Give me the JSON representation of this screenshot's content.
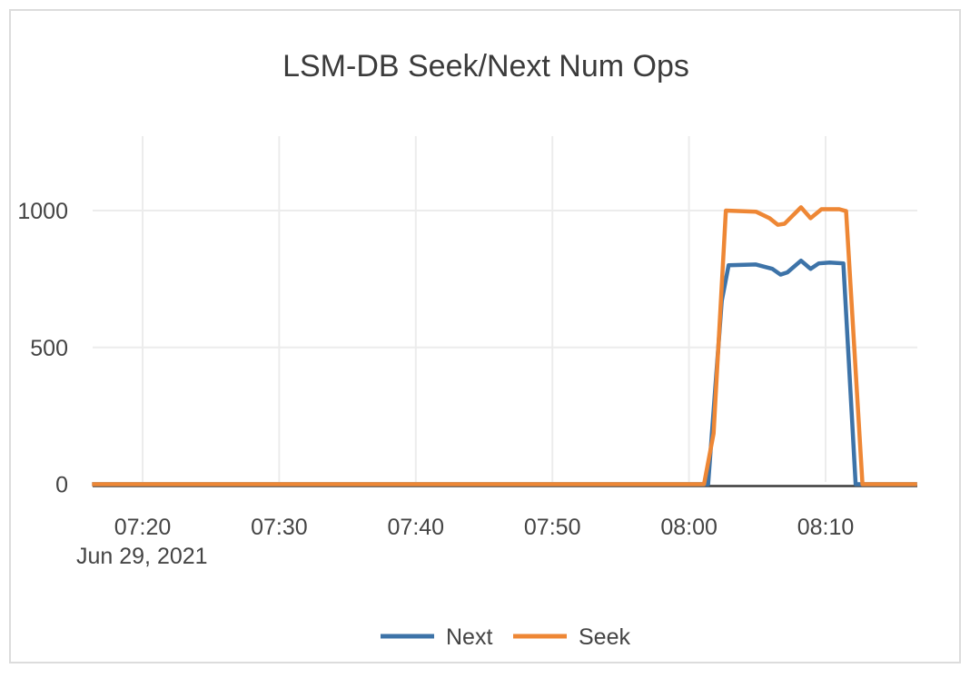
{
  "colors": {
    "card_border": "#dcdcdc",
    "background": "#ffffff",
    "gridline": "#ececec",
    "zeroline": "#3b3b3b",
    "tick_text": "#444444",
    "title_text": "#3b3b3b",
    "next_series": "#3d73a8",
    "seek_series": "#ee8735"
  },
  "chart_data": {
    "type": "line",
    "title": "LSM-DB Seek/Next Num Ops",
    "x_axis": {
      "unit": "time of day (minutes since 07:00)",
      "tick_labels": [
        "07:20",
        "07:30",
        "07:40",
        "07:50",
        "08:00",
        "08:10"
      ],
      "tick_minutes": [
        20,
        30,
        40,
        50,
        60,
        70
      ],
      "date_label": "Jun 29, 2021",
      "range_minutes": [
        16.3,
        76.7
      ]
    },
    "y_axis": {
      "tick_labels": [
        "0",
        "500",
        "1000"
      ],
      "tick_values": [
        0,
        500,
        1000
      ],
      "range": [
        0,
        1270
      ]
    },
    "grid": true,
    "legend_position": "bottom-center",
    "series": [
      {
        "name": "Next",
        "color": "#3d73a8",
        "points": [
          [
            16.3,
            0
          ],
          [
            61.4,
            0
          ],
          [
            62.4,
            670
          ],
          [
            62.9,
            800
          ],
          [
            64.9,
            803
          ],
          [
            66.1,
            787
          ],
          [
            66.7,
            766
          ],
          [
            67.2,
            774
          ],
          [
            68.2,
            817
          ],
          [
            68.9,
            787
          ],
          [
            69.5,
            807
          ],
          [
            70.3,
            810
          ],
          [
            71.3,
            807
          ],
          [
            72.2,
            0
          ],
          [
            76.7,
            0
          ]
        ]
      },
      {
        "name": "Seek",
        "color": "#ee8735",
        "points": [
          [
            16.3,
            0
          ],
          [
            61.1,
            0
          ],
          [
            61.8,
            185
          ],
          [
            62.7,
            1000
          ],
          [
            64.9,
            996
          ],
          [
            65.9,
            972
          ],
          [
            66.5,
            948
          ],
          [
            67.0,
            952
          ],
          [
            68.2,
            1012
          ],
          [
            68.9,
            972
          ],
          [
            69.7,
            1005
          ],
          [
            71.0,
            1005
          ],
          [
            71.5,
            998
          ],
          [
            72.7,
            0
          ],
          [
            76.7,
            0
          ]
        ]
      }
    ]
  }
}
